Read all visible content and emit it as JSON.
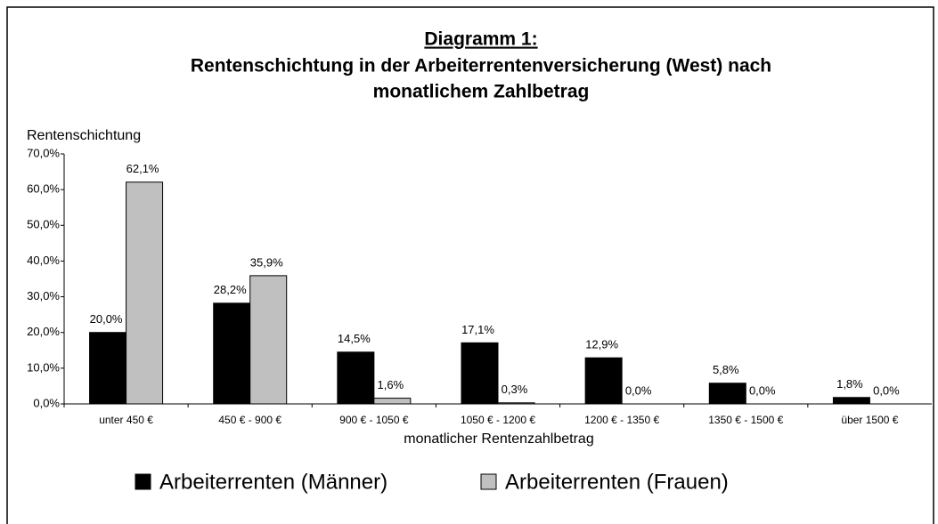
{
  "chart_data": {
    "type": "bar",
    "title": "Diagramm 1:",
    "subtitle": [
      "Rentenschichtung in der Arbeiterrentenversicherung (West) nach",
      "monatlichem Zahlbetrag"
    ],
    "y_label": "Rentenschichtung",
    "x_label": "monatlicher Rentenzahlbetrag",
    "categories": [
      "unter 450 €",
      "450 € - 900 €",
      "900 € - 1050 €",
      "1050 € - 1200 €",
      "1200 € - 1350 €",
      "1350 € - 1500 €",
      "über 1500 €"
    ],
    "series": [
      {
        "name": "Arbeiterrenten (Männer)",
        "color": "#000000",
        "values": [
          20.0,
          28.2,
          14.5,
          17.1,
          12.9,
          5.8,
          1.8
        ],
        "value_labels": [
          "20,0%",
          "28,2%",
          "14,5%",
          "17,1%",
          "12,9%",
          "5,8%",
          "1,8%"
        ]
      },
      {
        "name": "Arbeiterrenten (Frauen)",
        "color": "#c0c0c0",
        "values": [
          62.1,
          35.9,
          1.6,
          0.3,
          0.0,
          0.0,
          0.0
        ],
        "value_labels": [
          "62,1%",
          "35,9%",
          "1,6%",
          "0,3%",
          "0,0%",
          "0,0%",
          "0,0%"
        ]
      }
    ],
    "ylim": [
      0,
      70
    ],
    "yticks": [
      {
        "value": 0,
        "label": "0,0%"
      },
      {
        "value": 10,
        "label": "10,0%"
      },
      {
        "value": 20,
        "label": "20,0%"
      },
      {
        "value": 30,
        "label": "30,0%"
      },
      {
        "value": 40,
        "label": "40,0%"
      },
      {
        "value": 50,
        "label": "50,0%"
      },
      {
        "value": 60,
        "label": "60,0%"
      },
      {
        "value": 70,
        "label": "70,0%"
      }
    ],
    "grid": false,
    "legend": "bottom"
  }
}
